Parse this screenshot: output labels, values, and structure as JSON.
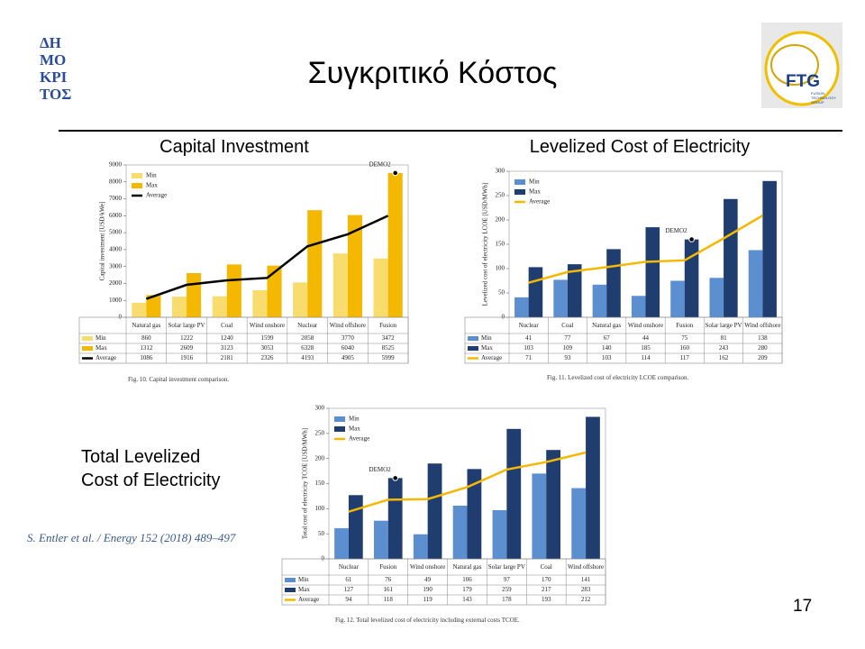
{
  "slide": {
    "title": "Συγκριτικό Κόστος",
    "page_number": "17",
    "citation": "S. Entler et al. / Energy 152 (2018) 489–497",
    "logo_left": "ΔΗ\nΜΟ\nΚΡΙ\nΤΟΣ",
    "logo_right": "FTG",
    "logo_right_sub": "FUSION\nTECHNOLOGY\nGROUP"
  },
  "chart_data": [
    {
      "type": "bar",
      "heading": "Capital Investment",
      "ylabel": "Capital investment [USD/kWe]",
      "caption": "Fig. 10. Capital investment comparison.",
      "categories": [
        "Natural gas",
        "Solar large PV",
        "Coal",
        "Wind onshore",
        "Nuclear",
        "Wind offshore",
        "Fusion"
      ],
      "series": [
        {
          "name": "Min",
          "type": "bar",
          "color": "#f9dc6e",
          "values": [
            860,
            1222,
            1240,
            1599,
            2058,
            3770,
            3472
          ]
        },
        {
          "name": "Max",
          "type": "bar",
          "color": "#f5b800",
          "values": [
            1312,
            2609,
            3123,
            3053,
            6328,
            6040,
            8525
          ]
        },
        {
          "name": "Average",
          "type": "line",
          "color": "#000000",
          "values": [
            1086,
            1916,
            2181,
            2326,
            4193,
            4905,
            5999
          ]
        }
      ],
      "ylim": [
        0,
        9000
      ],
      "yticks": [
        0,
        1000,
        2000,
        3000,
        4000,
        5000,
        6000,
        7000,
        8000,
        9000
      ],
      "annotation": {
        "text": "DEMO2",
        "category": "Fusion"
      }
    },
    {
      "type": "bar",
      "heading": "Levelized Cost of Electricity",
      "ylabel": "Levelized cost of electricity LCOE [USD/MWh]",
      "caption": "Fig. 11. Levelized cost of electricity LCOE comparison.",
      "categories": [
        "Nuclear",
        "Coal",
        "Natural gas",
        "Wind onshore",
        "Fusion",
        "Solar large PV",
        "Wind offshore"
      ],
      "series": [
        {
          "name": "Min",
          "type": "bar",
          "color": "#5b8fd0",
          "values": [
            41,
            77,
            67,
            44,
            75,
            81,
            138
          ]
        },
        {
          "name": "Max",
          "type": "bar",
          "color": "#1f3d6e",
          "values": [
            103,
            109,
            140,
            185,
            160,
            243,
            280
          ]
        },
        {
          "name": "Average",
          "type": "line",
          "color": "#f5b800",
          "values": [
            71,
            93,
            103,
            114,
            117,
            162,
            209
          ]
        }
      ],
      "ylim": [
        0,
        300
      ],
      "yticks": [
        0,
        50,
        100,
        150,
        200,
        250,
        300
      ],
      "annotation": {
        "text": "DEMO2",
        "category": "Fusion"
      }
    },
    {
      "type": "bar",
      "heading": "Total Levelized\nCost of Electricity",
      "ylabel": "Total cost of electricity TCOE [USD/MWh]",
      "caption": "Fig. 12. Total levelized cost of electricity including external costs TCOE.",
      "categories": [
        "Nuclear",
        "Fusion",
        "Wind onshore",
        "Natural gas",
        "Solar large PV",
        "Coal",
        "Wind offshore"
      ],
      "series": [
        {
          "name": "Min",
          "type": "bar",
          "color": "#5b8fd0",
          "values": [
            61,
            76,
            49,
            106,
            97,
            170,
            141
          ]
        },
        {
          "name": "Max",
          "type": "bar",
          "color": "#1f3d6e",
          "values": [
            127,
            161,
            190,
            179,
            259,
            217,
            283
          ]
        },
        {
          "name": "Average",
          "type": "line",
          "color": "#f5b800",
          "values": [
            94,
            118,
            119,
            143,
            178,
            193,
            212
          ]
        }
      ],
      "ylim": [
        0,
        300
      ],
      "yticks": [
        0,
        50,
        100,
        150,
        200,
        250,
        300
      ],
      "annotation": {
        "text": "DEMO2",
        "category": "Fusion"
      }
    }
  ]
}
